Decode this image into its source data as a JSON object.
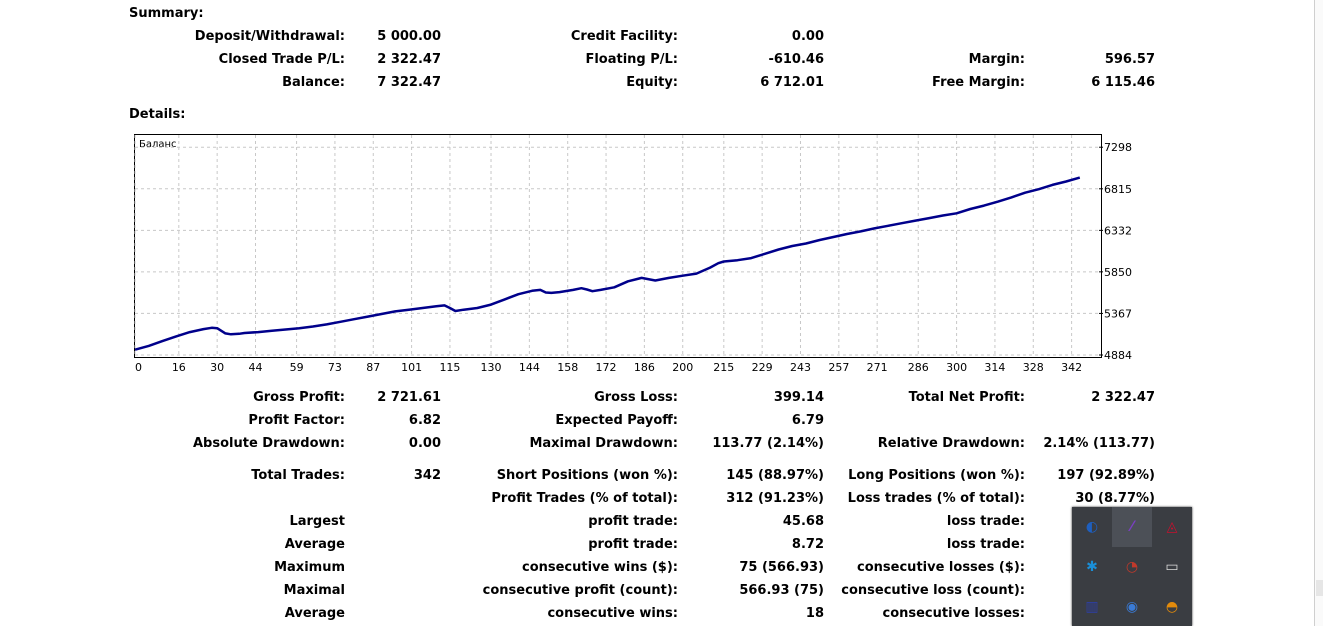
{
  "summary": {
    "title": "Summary:",
    "rows": [
      [
        {
          "label": "Deposit/Withdrawal:",
          "value": "5 000.00"
        },
        {
          "label": "Credit Facility:",
          "value": "0.00"
        },
        {
          "label": "",
          "value": ""
        }
      ],
      [
        {
          "label": "Closed Trade P/L:",
          "value": "2 322.47"
        },
        {
          "label": "Floating P/L:",
          "value": "-610.46"
        },
        {
          "label": "Margin:",
          "value": "596.57"
        }
      ],
      [
        {
          "label": "Balance:",
          "value": "7 322.47"
        },
        {
          "label": "Equity:",
          "value": "6 712.01"
        },
        {
          "label": "Free Margin:",
          "value": "6 115.46"
        }
      ]
    ]
  },
  "details": {
    "title": "Details:",
    "rows": [
      [
        {
          "label": "Gross Profit:",
          "value": "2 721.61"
        },
        {
          "label": "Gross Loss:",
          "value": "399.14"
        },
        {
          "label": "Total Net Profit:",
          "value": "2 322.47"
        }
      ],
      [
        {
          "label": "Profit Factor:",
          "value": "6.82"
        },
        {
          "label": "Expected Payoff:",
          "value": "6.79"
        },
        {
          "label": "",
          "value": ""
        }
      ],
      [
        {
          "label": "Absolute Drawdown:",
          "value": "0.00"
        },
        {
          "label": "Maximal Drawdown:",
          "value": "113.77 (2.14%)"
        },
        {
          "label": "Relative Drawdown:",
          "value": "2.14% (113.77)"
        }
      ],
      [
        {
          "label": "Total Trades:",
          "value": "342"
        },
        {
          "label": "Short Positions (won %):",
          "value": "145 (88.97%)"
        },
        {
          "label": "Long Positions (won %):",
          "value": "197 (92.89%)"
        }
      ],
      [
        {
          "label": "",
          "value": ""
        },
        {
          "label": "Profit Trades (% of total):",
          "value": "312 (91.23%)"
        },
        {
          "label": "Loss trades (% of total):",
          "value": "30 (8.77%)"
        }
      ],
      [
        {
          "label": "Largest",
          "value": ""
        },
        {
          "label": "profit trade:",
          "value": "45.68"
        },
        {
          "label": "loss trade:",
          "value": ""
        }
      ],
      [
        {
          "label": "Average",
          "value": ""
        },
        {
          "label": "profit trade:",
          "value": "8.72"
        },
        {
          "label": "loss trade:",
          "value": ""
        }
      ],
      [
        {
          "label": "Maximum",
          "value": ""
        },
        {
          "label": "consecutive wins ($):",
          "value": "75 (566.93)"
        },
        {
          "label": "consecutive losses ($):",
          "value": ""
        }
      ],
      [
        {
          "label": "Maximal",
          "value": ""
        },
        {
          "label": "consecutive profit (count):",
          "value": "566.93 (75)"
        },
        {
          "label": "consecutive loss (count):",
          "value": ""
        }
      ],
      [
        {
          "label": "Average",
          "value": ""
        },
        {
          "label": "consecutive wins:",
          "value": "18"
        },
        {
          "label": "consecutive losses:",
          "value": ""
        }
      ]
    ]
  },
  "chart_data": {
    "type": "line",
    "series_label": "Баланс",
    "ylim": [
      4884,
      7440
    ],
    "xlim": [
      0,
      352
    ],
    "y_ticks": [
      "7298",
      "6815",
      "6332",
      "5850",
      "5367",
      "4884"
    ],
    "x_ticks": [
      "0",
      "16",
      "30",
      "44",
      "59",
      "73",
      "87",
      "101",
      "115",
      "130",
      "144",
      "158",
      "172",
      "186",
      "200",
      "215",
      "229",
      "243",
      "257",
      "271",
      "286",
      "300",
      "314",
      "328",
      "342"
    ],
    "grid": true,
    "series": [
      {
        "color": "#00008b",
        "x": [
          0,
          5,
          10,
          15,
          20,
          25,
          28,
          30,
          33,
          35,
          38,
          40,
          45,
          50,
          55,
          60,
          65,
          70,
          75,
          80,
          85,
          90,
          95,
          100,
          105,
          110,
          113,
          115,
          117,
          120,
          125,
          130,
          135,
          140,
          145,
          148,
          150,
          152,
          155,
          160,
          163,
          165,
          167,
          170,
          175,
          180,
          185,
          190,
          195,
          200,
          205,
          210,
          213,
          215,
          220,
          225,
          230,
          235,
          240,
          245,
          250,
          255,
          260,
          265,
          270,
          275,
          280,
          285,
          290,
          295,
          300,
          305,
          310,
          315,
          320,
          325,
          330,
          335,
          340,
          345
        ],
        "y": [
          4945,
          4990,
          5045,
          5100,
          5150,
          5185,
          5200,
          5195,
          5135,
          5125,
          5130,
          5140,
          5150,
          5165,
          5180,
          5195,
          5215,
          5240,
          5270,
          5300,
          5330,
          5360,
          5390,
          5410,
          5430,
          5450,
          5460,
          5430,
          5395,
          5410,
          5430,
          5470,
          5530,
          5590,
          5630,
          5640,
          5610,
          5605,
          5615,
          5640,
          5660,
          5645,
          5625,
          5640,
          5670,
          5740,
          5780,
          5750,
          5780,
          5805,
          5830,
          5900,
          5950,
          5970,
          5985,
          6010,
          6060,
          6110,
          6150,
          6180,
          6220,
          6255,
          6290,
          6320,
          6355,
          6385,
          6415,
          6445,
          6475,
          6505,
          6530,
          6580,
          6620,
          6665,
          6715,
          6770,
          6810,
          6860,
          6900,
          6945
        ]
      }
    ]
  },
  "tray": {
    "icons": [
      {
        "name": "blue-circle-app-icon",
        "color": "#1e5fbf",
        "glyph": "◐"
      },
      {
        "name": "feather-pen-icon",
        "color": "#7a3fc2",
        "glyph": "⁄"
      },
      {
        "name": "avira-umbrella-icon",
        "color": "#c8102e",
        "glyph": "◬"
      },
      {
        "name": "bluetooth-icon",
        "color": "#1a8fd8",
        "glyph": "✱"
      },
      {
        "name": "ccleaner-icon",
        "color": "#c0392b",
        "glyph": "◔"
      },
      {
        "name": "battery-icon",
        "color": "#dcdcdc",
        "glyph": "▭"
      },
      {
        "name": "video-app-icon",
        "color": "#2d3ea8",
        "glyph": "▥"
      },
      {
        "name": "monitor-warning-icon",
        "color": "#3a7bd5",
        "glyph": "◉"
      },
      {
        "name": "speedometer-icon",
        "color": "#e38b0b",
        "glyph": "◓"
      }
    ]
  }
}
